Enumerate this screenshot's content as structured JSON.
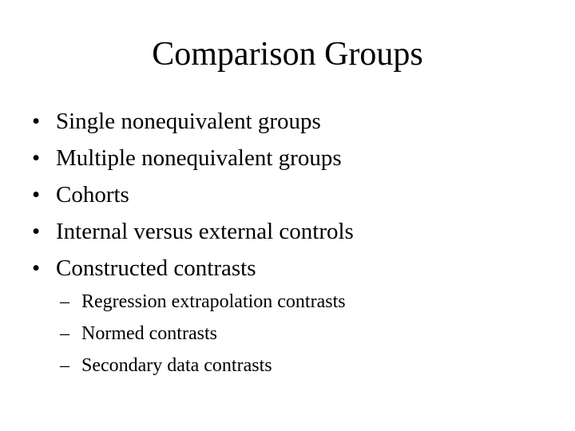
{
  "slide": {
    "title": "Comparison Groups",
    "bullets": [
      {
        "marker": "•",
        "text": "Single nonequivalent groups"
      },
      {
        "marker": "•",
        "text": "Multiple nonequivalent groups"
      },
      {
        "marker": "•",
        "text": "Cohorts"
      },
      {
        "marker": "•",
        "text": "Internal versus external controls"
      },
      {
        "marker": "•",
        "text": "Constructed contrasts"
      }
    ],
    "subbullets": [
      {
        "marker": "–",
        "text": "Regression extrapolation contrasts"
      },
      {
        "marker": "–",
        "text": "Normed contrasts"
      },
      {
        "marker": "–",
        "text": "Secondary data contrasts"
      }
    ]
  }
}
